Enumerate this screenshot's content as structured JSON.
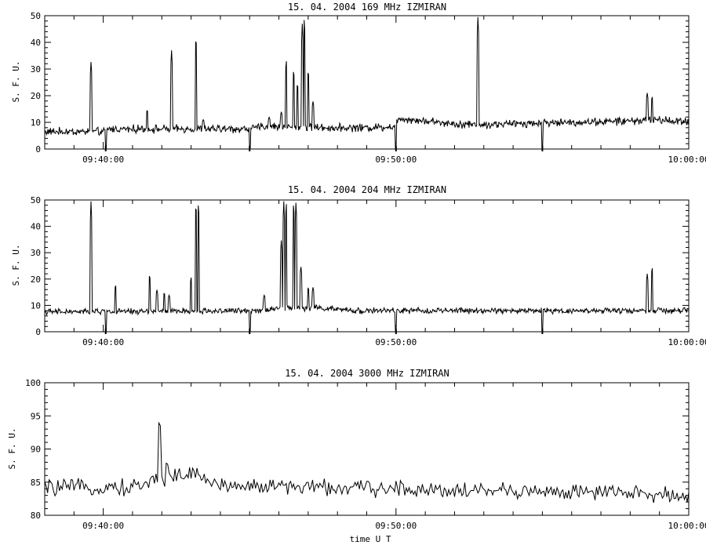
{
  "xlabel": "time  U T",
  "chart_data": [
    {
      "type": "line",
      "title": "15.  04.  2004    169 MHz    IZMIRAN",
      "ylabel": "S. F. U.",
      "xlim": [
        "09:38:00",
        "10:00:00"
      ],
      "ylim": [
        0,
        50
      ],
      "yticks": [
        0,
        10,
        20,
        30,
        40,
        50
      ],
      "xticks": [
        "09:40:00",
        "09:50:00",
        "10:00:00"
      ],
      "baseline": [
        {
          "t": "09:38:00",
          "v": 6.5
        },
        {
          "t": "09:40:00",
          "v": 6.5
        },
        {
          "t": "09:40:10",
          "v": 7.5
        },
        {
          "t": "09:44:00",
          "v": 7.5
        },
        {
          "t": "09:45:00",
          "v": 7.5
        },
        {
          "t": "09:45:30",
          "v": 8.5
        },
        {
          "t": "09:47:30",
          "v": 8.0
        },
        {
          "t": "09:49:00",
          "v": 8.0
        },
        {
          "t": "09:49:58",
          "v": 8.5
        },
        {
          "t": "09:50:05",
          "v": 11.5
        },
        {
          "t": "09:52:00",
          "v": 9.5
        },
        {
          "t": "09:53:00",
          "v": 9.0
        },
        {
          "t": "09:54:00",
          "v": 9.5
        },
        {
          "t": "09:56:00",
          "v": 10.0
        },
        {
          "t": "09:58:00",
          "v": 10.5
        },
        {
          "t": "09:59:00",
          "v": 11.0
        },
        {
          "t": "10:00:00",
          "v": 10.0
        }
      ],
      "noise": 1.2,
      "spikes": [
        {
          "t": "09:39:35",
          "v": 33
        },
        {
          "t": "09:41:30",
          "v": 15
        },
        {
          "t": "09:42:20",
          "v": 37
        },
        {
          "t": "09:43:10",
          "v": 43
        },
        {
          "t": "09:43:25",
          "v": 11
        },
        {
          "t": "09:45:40",
          "v": 12
        },
        {
          "t": "09:46:05",
          "v": 14
        },
        {
          "t": "09:46:15",
          "v": 34
        },
        {
          "t": "09:46:30",
          "v": 30
        },
        {
          "t": "09:46:38",
          "v": 25
        },
        {
          "t": "09:46:48",
          "v": 48
        },
        {
          "t": "09:46:52",
          "v": 50
        },
        {
          "t": "09:47:00",
          "v": 30
        },
        {
          "t": "09:47:10",
          "v": 18
        },
        {
          "t": "09:52:48",
          "v": 50
        },
        {
          "t": "09:58:35",
          "v": 21
        },
        {
          "t": "09:58:45",
          "v": 20
        }
      ],
      "dips": [
        "09:40:05",
        "09:45:00",
        "09:50:00",
        "09:55:00"
      ]
    },
    {
      "type": "line",
      "title": "15.  04.  2004    204 MHz    IZMIRAN",
      "ylabel": "S. F. U.",
      "xlim": [
        "09:38:00",
        "10:00:00"
      ],
      "ylim": [
        0,
        50
      ],
      "yticks": [
        0,
        10,
        20,
        30,
        40,
        50
      ],
      "xticks": [
        "09:40:00",
        "09:50:00",
        "10:00:00"
      ],
      "baseline": [
        {
          "t": "09:38:00",
          "v": 7.5
        },
        {
          "t": "09:45:00",
          "v": 8.0
        },
        {
          "t": "09:46:00",
          "v": 9.0
        },
        {
          "t": "09:47:30",
          "v": 9.0
        },
        {
          "t": "09:48:30",
          "v": 8.0
        },
        {
          "t": "10:00:00",
          "v": 8.0
        }
      ],
      "noise": 0.9,
      "spikes": [
        {
          "t": "09:39:35",
          "v": 50
        },
        {
          "t": "09:40:25",
          "v": 18
        },
        {
          "t": "09:41:35",
          "v": 22
        },
        {
          "t": "09:41:50",
          "v": 16
        },
        {
          "t": "09:42:05",
          "v": 15
        },
        {
          "t": "09:42:15",
          "v": 14
        },
        {
          "t": "09:43:00",
          "v": 21
        },
        {
          "t": "09:43:10",
          "v": 50
        },
        {
          "t": "09:43:15",
          "v": 50
        },
        {
          "t": "09:45:30",
          "v": 14
        },
        {
          "t": "09:46:05",
          "v": 35
        },
        {
          "t": "09:46:10",
          "v": 50
        },
        {
          "t": "09:46:15",
          "v": 50
        },
        {
          "t": "09:46:30",
          "v": 50
        },
        {
          "t": "09:46:35",
          "v": 50
        },
        {
          "t": "09:46:45",
          "v": 25
        },
        {
          "t": "09:47:00",
          "v": 17
        },
        {
          "t": "09:47:10",
          "v": 17
        },
        {
          "t": "09:58:35",
          "v": 22
        },
        {
          "t": "09:58:45",
          "v": 25
        }
      ],
      "dips": [
        "09:40:05",
        "09:45:00",
        "09:50:00",
        "09:55:00"
      ]
    },
    {
      "type": "line",
      "title": "15.  04.  2004    3000 MHz    IZMIRAN",
      "ylabel": "S. F. U.",
      "xlim": [
        "09:38:00",
        "10:00:00"
      ],
      "ylim": [
        80,
        100
      ],
      "yticks": [
        80,
        85,
        90,
        95,
        100
      ],
      "xticks": [
        "09:40:00",
        "09:50:00",
        "10:00:00"
      ],
      "baseline": [
        {
          "t": "09:38:00",
          "v": 84.2
        },
        {
          "t": "09:41:00",
          "v": 84.2
        },
        {
          "t": "09:42:20",
          "v": 86.0
        },
        {
          "t": "09:43:10",
          "v": 86.2
        },
        {
          "t": "09:44:00",
          "v": 84.5
        },
        {
          "t": "09:50:00",
          "v": 84.0
        },
        {
          "t": "09:56:00",
          "v": 83.5
        },
        {
          "t": "10:00:00",
          "v": 83.0
        }
      ],
      "noise": 1.0,
      "spikes": [
        {
          "t": "09:41:55",
          "v": 94.5
        },
        {
          "t": "09:42:10",
          "v": 88
        }
      ],
      "dips": []
    }
  ]
}
